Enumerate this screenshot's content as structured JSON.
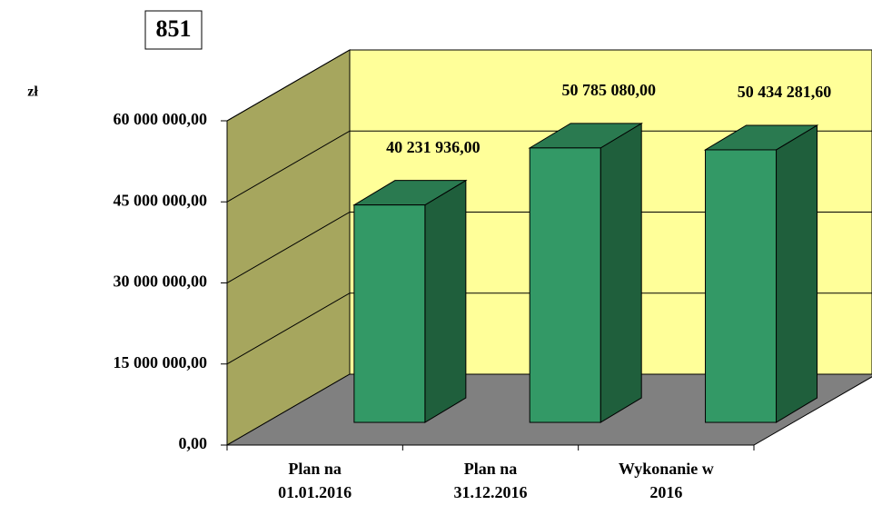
{
  "chart_data": {
    "type": "bar3d",
    "title": "851",
    "y_label": "zł",
    "categories": [
      "Plan na 01.01.2016",
      "Plan na 31.12.2016",
      "Wykonanie w 2016"
    ],
    "values": [
      40231936,
      50785080,
      50434281.6
    ],
    "value_labels": [
      "40 231 936,00",
      "50 785 080,00",
      "50 434 281,60"
    ],
    "color": "#339966",
    "ylim": [
      0,
      60000000
    ],
    "yticks": [
      {
        "value": 0,
        "label": "0,00"
      },
      {
        "value": 15000000,
        "label": "15 000 000,00"
      },
      {
        "value": 30000000,
        "label": "30 000 000,00"
      },
      {
        "value": 45000000,
        "label": "45 000 000,00"
      },
      {
        "value": 60000000,
        "label": "60 000 000,00"
      }
    ],
    "grid": true
  }
}
